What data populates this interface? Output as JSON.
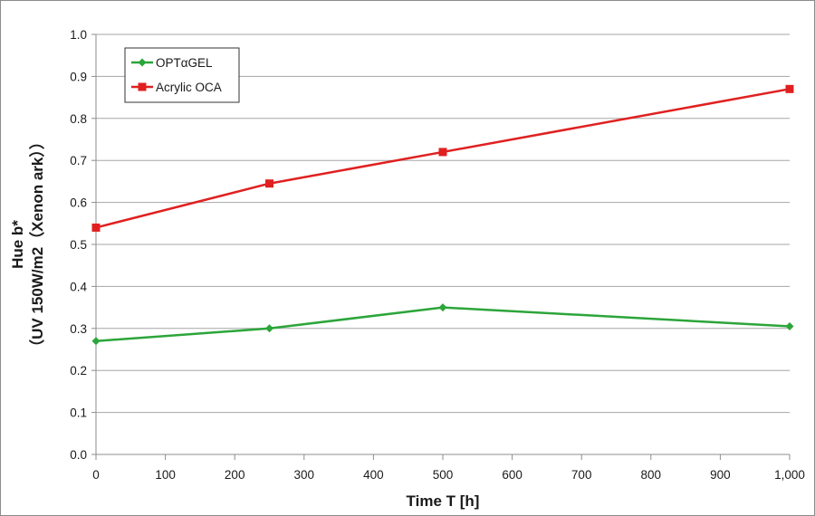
{
  "chart_data": {
    "type": "line",
    "xlabel": "Time T [h]",
    "ylabel_line1": "Hue b*",
    "ylabel_line2": "（UV 150W/m2（Xenon ark））",
    "xlim": [
      0,
      1000
    ],
    "ylim": [
      0.0,
      1.0
    ],
    "x_ticks": [
      0,
      100,
      200,
      300,
      400,
      500,
      600,
      700,
      800,
      900,
      1000
    ],
    "x_tick_labels": [
      "0",
      "100",
      "200",
      "300",
      "400",
      "500",
      "600",
      "700",
      "800",
      "900",
      "1,000"
    ],
    "y_ticks": [
      0.0,
      0.1,
      0.2,
      0.3,
      0.4,
      0.5,
      0.6,
      0.7,
      0.8,
      0.9,
      1.0
    ],
    "y_tick_labels": [
      "0.0",
      "0.1",
      "0.2",
      "0.3",
      "0.4",
      "0.5",
      "0.6",
      "0.7",
      "0.8",
      "0.9",
      "1.0"
    ],
    "grid": "horizontal",
    "legend_position": "top-left",
    "series": [
      {
        "name": "OPTαGEL",
        "color": "#2ca53a",
        "marker": "diamond",
        "x": [
          0,
          250,
          500,
          1000
        ],
        "y": [
          0.27,
          0.3,
          0.35,
          0.305
        ]
      },
      {
        "name": "Acrylic OCA",
        "color": "#e02020",
        "marker": "square",
        "x": [
          0,
          250,
          500,
          1000
        ],
        "y": [
          0.54,
          0.645,
          0.72,
          0.87
        ]
      }
    ]
  }
}
